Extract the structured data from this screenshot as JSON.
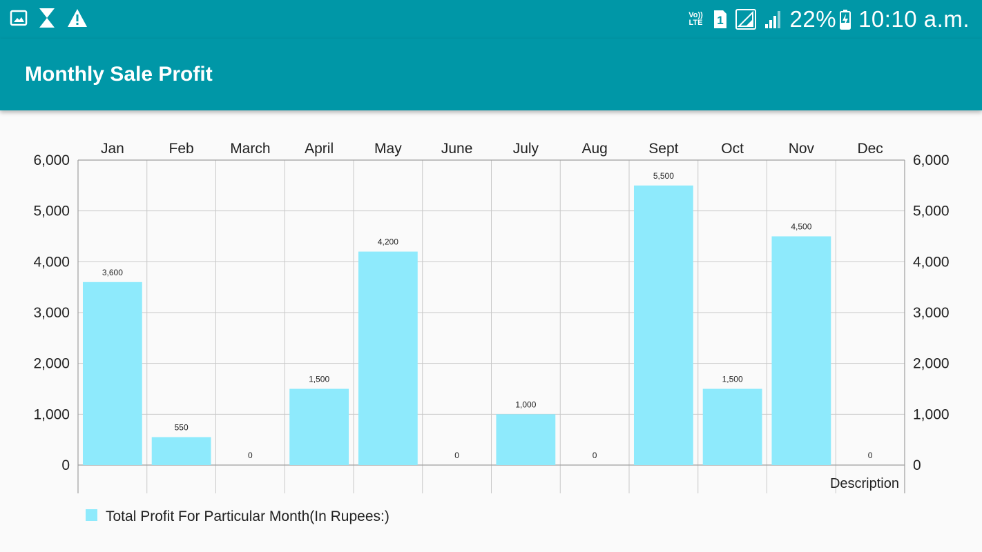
{
  "status_bar": {
    "battery": "22%",
    "time": "10:10 a.m.",
    "network": "Vo)) LTE",
    "sim": "1",
    "left_icons": [
      "image-icon",
      "hourglass-icon",
      "warning-icon"
    ],
    "right_icons": [
      "volte-icon",
      "sim-icon",
      "signal-box-icon",
      "signal-icon",
      "battery-charging-icon"
    ]
  },
  "app_bar": {
    "title": "Monthly Sale Profit",
    "color": "#0097a7"
  },
  "chart_data": {
    "type": "bar",
    "categories": [
      "Jan",
      "Feb",
      "March",
      "April",
      "May",
      "June",
      "July",
      "Aug",
      "Sept",
      "Oct",
      "Nov",
      "Dec"
    ],
    "series": [
      {
        "name": "Total Profit For Particular Month(In Rupees:)",
        "values": [
          3600,
          550,
          0,
          1500,
          4200,
          0,
          1000,
          0,
          5500,
          1500,
          4500,
          0
        ],
        "color": "#8eeafc"
      }
    ],
    "value_labels": [
      "3,600",
      "550",
      "0",
      "1,500",
      "4,200",
      "0",
      "1,000",
      "0",
      "5,500",
      "1,500",
      "4,500",
      "0"
    ],
    "y_ticks": [
      "0",
      "1,000",
      "2,000",
      "3,000",
      "4,000",
      "5,000",
      "6,000"
    ],
    "ylim": [
      0,
      6000
    ],
    "description": "Description",
    "x_axis_position": "top",
    "y_axis": "left-and-right",
    "grid": true,
    "legend_position": "bottom-left"
  }
}
